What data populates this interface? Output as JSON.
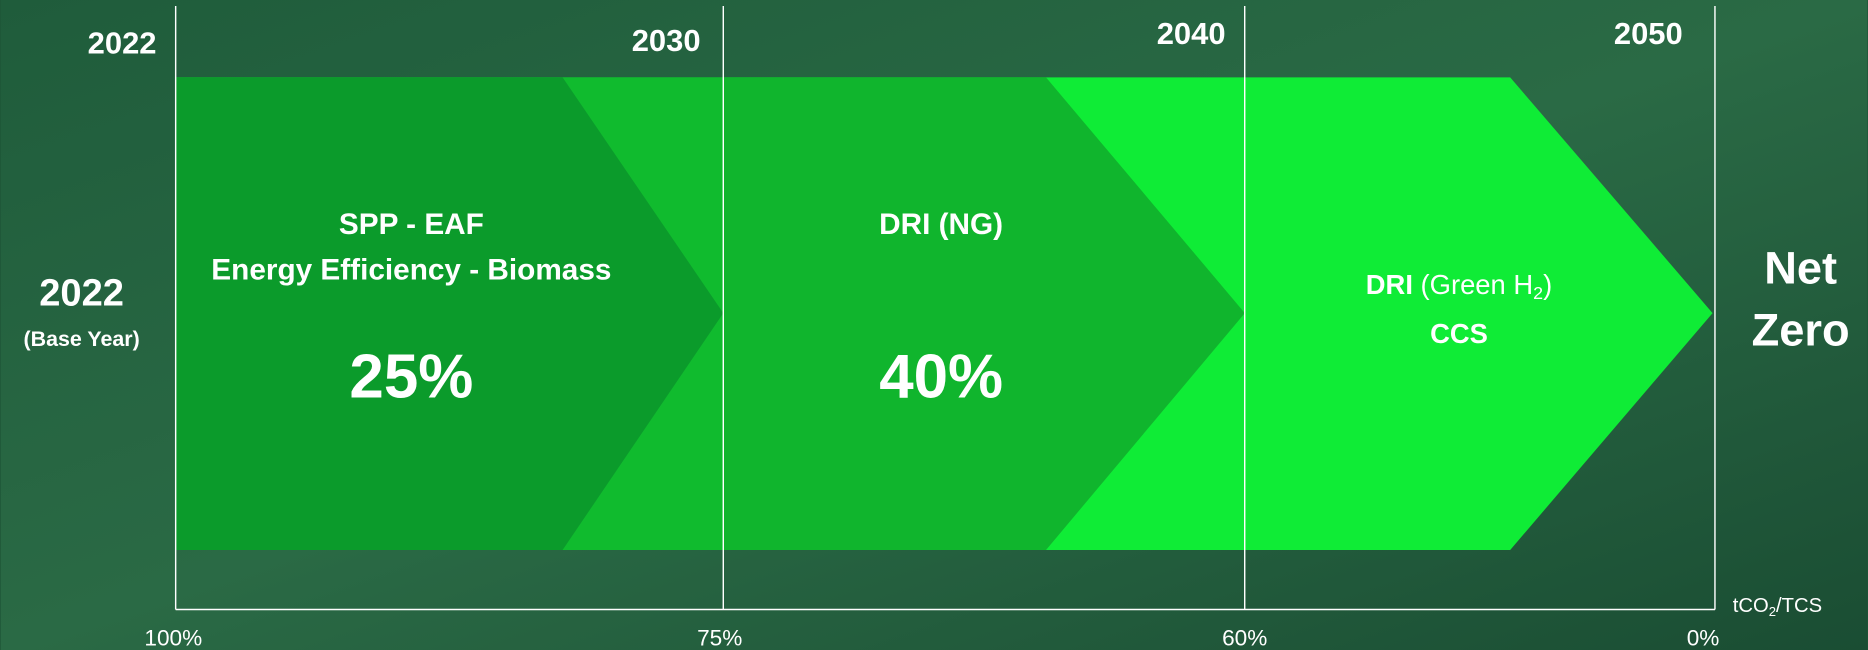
{
  "timeline": {
    "years": [
      "2022",
      "2030",
      "2040",
      "2050"
    ],
    "base": {
      "year": "2022",
      "note": "(Base Year)"
    },
    "stages": [
      {
        "lines": [
          "SPP - EAF",
          "Energy Efficiency - Biomass"
        ],
        "reduction": "25%"
      },
      {
        "lines": [
          "DRI (NG)"
        ],
        "reduction": "40%"
      },
      {
        "bold": "DRI",
        "text": " (Green H",
        "subscript": "2",
        "after": ")",
        "line2": "CCS"
      }
    ],
    "goal": [
      "Net",
      "Zero"
    ],
    "emissions_axis": {
      "unit": {
        "text": "tCO",
        "subscript": "2",
        "after": "/TCS"
      },
      "labels": [
        "100%",
        "75%",
        "60%",
        "0%"
      ]
    }
  }
}
